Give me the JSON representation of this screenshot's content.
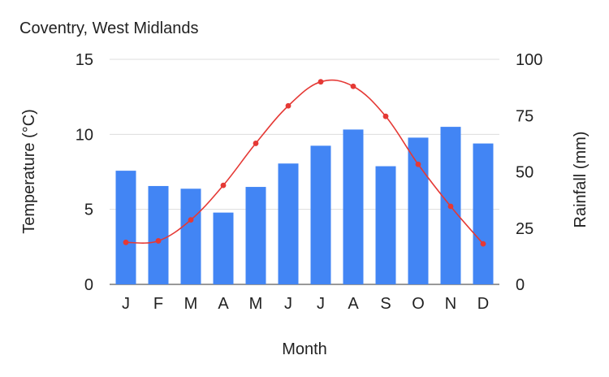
{
  "chart_data": {
    "type": "bar",
    "title": "Coventry, West Midlands",
    "xlabel": "Month",
    "ylabel_left": "Temperature (°C)",
    "ylabel_right": "Rainfall (mm)",
    "categories": [
      "J",
      "F",
      "M",
      "A",
      "M",
      "J",
      "J",
      "A",
      "S",
      "O",
      "N",
      "D"
    ],
    "ylim_left": [
      0,
      15
    ],
    "ylim_right": [
      0,
      100
    ],
    "yticks_left": [
      "0",
      "5",
      "10",
      "15"
    ],
    "yticks_right": [
      "0",
      "25",
      "50",
      "75",
      "100"
    ],
    "grid": true,
    "series": [
      {
        "type": "bar",
        "axis": "right",
        "color": "#4285f4",
        "values": [
          50.5,
          43.7,
          42.5,
          31.9,
          43.3,
          53.7,
          61.6,
          68.8,
          52.5,
          65.2,
          70.0,
          62.6
        ]
      },
      {
        "type": "line",
        "axis": "left",
        "color": "#e53935",
        "values": [
          2.8,
          2.9,
          4.3,
          6.6,
          9.4,
          11.9,
          13.5,
          13.2,
          11.2,
          8.0,
          5.2,
          2.7
        ]
      }
    ]
  }
}
